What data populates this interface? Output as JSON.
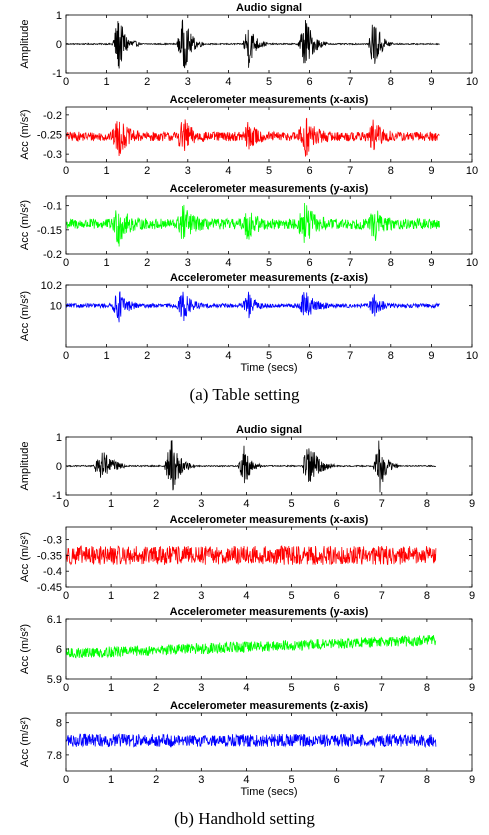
{
  "figure": {
    "caption_a": "(a)  Table setting",
    "caption_b": "(b)  Handhold setting"
  },
  "chart_data": [
    {
      "type": "line",
      "title": "Audio signal",
      "ylabel": "Amplitude",
      "xlabel": "",
      "xlim": [
        0,
        10
      ],
      "ylim": [
        -1,
        1
      ],
      "xticks": [
        "0",
        "1",
        "2",
        "3",
        "4",
        "5",
        "6",
        "7",
        "8",
        "9",
        "10"
      ],
      "yticks": [
        "-1",
        "0",
        "1"
      ],
      "color": "#000000",
      "duration": 9.2,
      "baseline": 0,
      "noise": 0.02,
      "bursts": [
        {
          "t": 1.3,
          "amp": 1.0,
          "width": 0.5
        },
        {
          "t": 2.9,
          "amp": 1.0,
          "width": 0.5
        },
        {
          "t": 4.5,
          "amp": 0.85,
          "width": 0.45
        },
        {
          "t": 5.9,
          "amp": 0.95,
          "width": 0.55
        },
        {
          "t": 7.6,
          "amp": 1.0,
          "width": 0.45
        }
      ]
    },
    {
      "type": "line",
      "title": "Accelerometer measurements (x-axis)",
      "ylabel": "Acc (m/s²)",
      "xlabel": "",
      "xlim": [
        0,
        10
      ],
      "ylim": [
        -0.32,
        -0.18
      ],
      "xticks": [
        "0",
        "1",
        "2",
        "3",
        "4",
        "5",
        "6",
        "7",
        "8",
        "9",
        "10"
      ],
      "yticks": [
        "-0.2",
        "-0.25",
        "-0.3"
      ],
      "ytick_values": [
        -0.2,
        -0.25,
        -0.3
      ],
      "color": "#ff0000",
      "duration": 9.2,
      "baseline": -0.255,
      "noise": 0.012,
      "bursts": [
        {
          "t": 1.3,
          "amp": 0.045,
          "width": 0.5
        },
        {
          "t": 2.9,
          "amp": 0.04,
          "width": 0.5
        },
        {
          "t": 4.5,
          "amp": 0.035,
          "width": 0.45
        },
        {
          "t": 5.9,
          "amp": 0.05,
          "width": 0.55
        },
        {
          "t": 7.6,
          "amp": 0.04,
          "width": 0.45
        }
      ]
    },
    {
      "type": "line",
      "title": "Accelerometer measurements (y-axis)",
      "ylabel": "Acc (m/s²)",
      "xlabel": "",
      "xlim": [
        0,
        10
      ],
      "ylim": [
        -0.2,
        -0.08
      ],
      "xticks": [
        "0",
        "1",
        "2",
        "3",
        "4",
        "5",
        "6",
        "7",
        "8",
        "9",
        "10"
      ],
      "yticks": [
        "-0.1",
        "-0.15",
        "-0.2"
      ],
      "ytick_values": [
        -0.1,
        -0.15,
        -0.2
      ],
      "color": "#00ff00",
      "duration": 9.2,
      "baseline": -0.138,
      "noise": 0.011,
      "bursts": [
        {
          "t": 1.3,
          "amp": 0.04,
          "width": 0.5
        },
        {
          "t": 2.9,
          "amp": 0.035,
          "width": 0.5
        },
        {
          "t": 4.5,
          "amp": 0.03,
          "width": 0.45
        },
        {
          "t": 5.9,
          "amp": 0.04,
          "width": 0.55
        },
        {
          "t": 7.6,
          "amp": 0.03,
          "width": 0.45
        }
      ]
    },
    {
      "type": "line",
      "title": "Accelerometer measurements (z-axis)",
      "ylabel": "Acc (m/s²)",
      "xlabel": "Time (secs)",
      "xlim": [
        0,
        10
      ],
      "ylim": [
        9.6,
        10.2
      ],
      "xticks": [
        "0",
        "1",
        "2",
        "3",
        "4",
        "5",
        "6",
        "7",
        "8",
        "9",
        "10"
      ],
      "yticks": [
        "10.2",
        "10"
      ],
      "ytick_values": [
        10.2,
        10
      ],
      "color": "#0000ff",
      "duration": 9.2,
      "baseline": 10.0,
      "noise": 0.02,
      "bursts": [
        {
          "t": 1.3,
          "amp": 0.15,
          "width": 0.5
        },
        {
          "t": 2.9,
          "amp": 0.15,
          "width": 0.5
        },
        {
          "t": 4.5,
          "amp": 0.12,
          "width": 0.45
        },
        {
          "t": 5.9,
          "amp": 0.15,
          "width": 0.55
        },
        {
          "t": 7.6,
          "amp": 0.1,
          "width": 0.45
        }
      ]
    },
    {
      "type": "line",
      "title": "Audio signal",
      "ylabel": "Amplitude",
      "xlabel": "",
      "xlim": [
        0,
        9
      ],
      "ylim": [
        -1,
        1
      ],
      "xticks": [
        "0",
        "1",
        "2",
        "3",
        "4",
        "5",
        "6",
        "7",
        "8",
        "9"
      ],
      "yticks": [
        "-1",
        "0",
        "1"
      ],
      "color": "#000000",
      "duration": 8.2,
      "baseline": 0,
      "noise": 0.02,
      "bursts": [
        {
          "t": 0.8,
          "amp": 0.75,
          "width": 0.55
        },
        {
          "t": 2.35,
          "amp": 1.0,
          "width": 0.5
        },
        {
          "t": 3.95,
          "amp": 0.75,
          "width": 0.4
        },
        {
          "t": 5.4,
          "amp": 0.85,
          "width": 0.55
        },
        {
          "t": 6.95,
          "amp": 1.0,
          "width": 0.4
        }
      ]
    },
    {
      "type": "line",
      "title": "Accelerometer measurements (x-axis)",
      "ylabel": "Acc (m/s²)",
      "xlabel": "",
      "xlim": [
        0,
        9
      ],
      "ylim": [
        -0.45,
        -0.26
      ],
      "xticks": [
        "0",
        "1",
        "2",
        "3",
        "4",
        "5",
        "6",
        "7",
        "8",
        "9"
      ],
      "yticks": [
        "-0.3",
        "-0.35",
        "-0.4",
        "-0.45"
      ],
      "ytick_values": [
        -0.3,
        -0.35,
        -0.4,
        -0.45
      ],
      "color": "#ff0000",
      "duration": 8.2,
      "baseline": -0.35,
      "noise": 0.03,
      "bursts": []
    },
    {
      "type": "line",
      "title": "Accelerometer measurements (y-axis)",
      "ylabel": "Acc (m/s²)",
      "xlabel": "",
      "xlim": [
        0,
        9
      ],
      "ylim": [
        5.9,
        6.1
      ],
      "xticks": [
        "0",
        "1",
        "2",
        "3",
        "4",
        "5",
        "6",
        "7",
        "8",
        "9"
      ],
      "yticks": [
        "6.1",
        "6",
        "5.9"
      ],
      "ytick_values": [
        6.1,
        6.0,
        5.9
      ],
      "color": "#00ff00",
      "duration": 8.2,
      "baseline": 5.985,
      "trend_end": 6.03,
      "noise": 0.018,
      "bursts": []
    },
    {
      "type": "line",
      "title": "Accelerometer measurements (z-axis)",
      "ylabel": "Acc (m/s²)",
      "xlabel": "Time (secs)",
      "xlim": [
        0,
        9
      ],
      "ylim": [
        7.7,
        8.06
      ],
      "xticks": [
        "0",
        "1",
        "2",
        "3",
        "4",
        "5",
        "6",
        "7",
        "8",
        "9"
      ],
      "yticks": [
        "8",
        "7.8"
      ],
      "ytick_values": [
        8.0,
        7.8
      ],
      "color": "#0000ff",
      "duration": 8.2,
      "baseline": 7.89,
      "noise": 0.04,
      "bursts": []
    }
  ]
}
